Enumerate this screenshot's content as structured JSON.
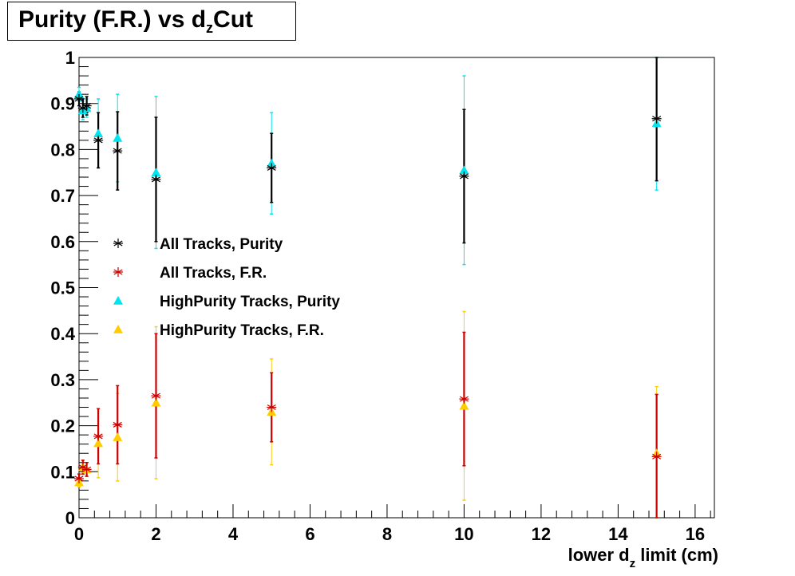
{
  "chart_data": {
    "type": "scatter",
    "title": "Purity (F.R.) vs d_z Cut",
    "title_parts": {
      "pre": "Purity (F.R.) vs d",
      "sub": "z",
      "post": "Cut"
    },
    "xlabel": "lower d_z limit (cm)",
    "xlabel_parts": {
      "pre": "lower d",
      "sub": "z",
      "post": " limit (cm)"
    },
    "ylabel": "",
    "xlim": [
      0,
      16.5
    ],
    "ylim": [
      0,
      1
    ],
    "x_ticks": [
      0,
      2,
      4,
      6,
      8,
      10,
      12,
      14,
      16
    ],
    "y_ticks": [
      0,
      0.1,
      0.2,
      0.3,
      0.4,
      0.5,
      0.6,
      0.7,
      0.8,
      0.9,
      1
    ],
    "x_tick_labels": [
      "0",
      "2",
      "4",
      "6",
      "8",
      "10",
      "12",
      "14",
      "16"
    ],
    "y_tick_labels": [
      "0",
      "0.1",
      "0.2",
      "0.3",
      "0.4",
      "0.5",
      "0.6",
      "0.7",
      "0.8",
      "0.9",
      "1"
    ],
    "grid": false,
    "legend_position": "center-left",
    "x": [
      0,
      0.1,
      0.2,
      0.5,
      1,
      2,
      5,
      10,
      15
    ],
    "series": [
      {
        "name": "All Tracks, Purity",
        "marker": "star",
        "color": "#000000",
        "values": [
          0.91,
          0.89,
          0.895,
          0.82,
          0.797,
          0.735,
          0.76,
          0.742,
          0.867
        ],
        "errors": [
          0.015,
          0.02,
          0.02,
          0.06,
          0.085,
          0.135,
          0.075,
          0.145,
          0.135
        ]
      },
      {
        "name": "All Tracks, F.R.",
        "marker": "star",
        "color": "#cc0000",
        "values": [
          0.085,
          0.11,
          0.105,
          0.177,
          0.202,
          0.265,
          0.24,
          0.258,
          0.133
        ],
        "errors": [
          0.01,
          0.015,
          0.015,
          0.06,
          0.085,
          0.135,
          0.075,
          0.145,
          0.135
        ]
      },
      {
        "name": "HighPurity Tracks, Purity",
        "marker": "triangle",
        "color": "#00e5ee",
        "values": [
          0.92,
          0.885,
          0.89,
          0.835,
          0.825,
          0.75,
          0.77,
          0.755,
          0.857
        ],
        "errors": [
          0.015,
          0.02,
          0.02,
          0.075,
          0.095,
          0.165,
          0.11,
          0.205,
          0.145
        ]
      },
      {
        "name": "HighPurity Tracks, F.R.",
        "marker": "triangle",
        "color": "#ffcc00",
        "values": [
          0.077,
          0.11,
          0.105,
          0.162,
          0.175,
          0.25,
          0.23,
          0.243,
          0.14
        ],
        "errors": [
          0.01,
          0.015,
          0.015,
          0.075,
          0.095,
          0.165,
          0.115,
          0.205,
          0.145
        ]
      }
    ]
  }
}
